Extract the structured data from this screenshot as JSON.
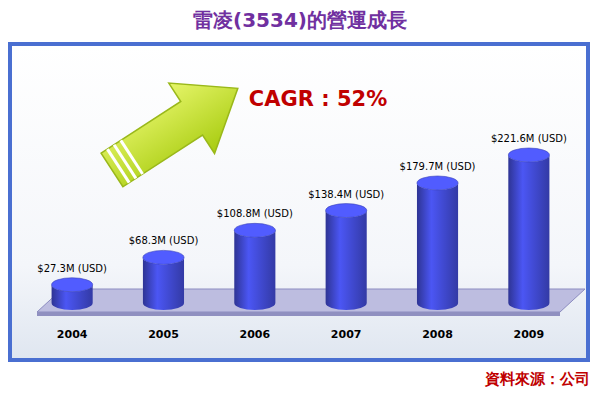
{
  "chart_data": {
    "type": "bar",
    "title": "雷凌(3534)的營運成長",
    "annotations": [
      "CAGR : 52%"
    ],
    "source": "資料來源：公司",
    "categories": [
      "2004",
      "2005",
      "2006",
      "2007",
      "2008",
      "2009"
    ],
    "values": [
      27.3,
      68.3,
      108.8,
      138.4,
      179.7,
      221.6
    ],
    "value_labels": [
      "$27.3M (USD)",
      "$68.3M (USD)",
      "$108.8M (USD)",
      "$138.4M (USD)",
      "$179.7M (USD)",
      "$221.6M (USD)"
    ],
    "data_labels": true,
    "tick_labels": "x",
    "grid": false,
    "color": "#3f48cc"
  }
}
